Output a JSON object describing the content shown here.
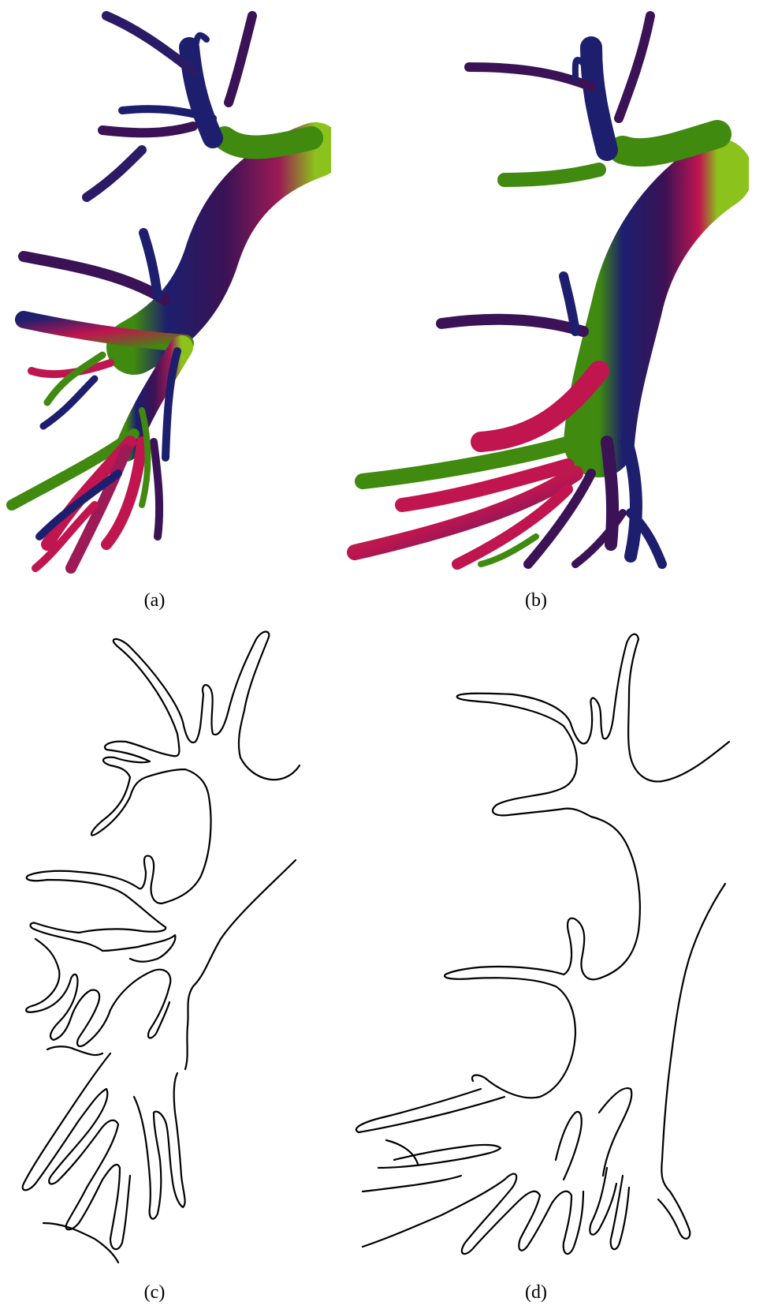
{
  "figure": {
    "panels": [
      {
        "id": "a",
        "label": "(a)"
      },
      {
        "id": "b",
        "label": "(b)"
      },
      {
        "id": "c",
        "label": "(c)"
      },
      {
        "id": "d",
        "label": "(d)"
      }
    ],
    "colors": {
      "purple": "#3a1255",
      "navy": "#1d1f6e",
      "magenta": "#c0154f",
      "green": "#3f8a0f",
      "lime": "#8bc21b",
      "outline": "#000000",
      "background": "#ffffff"
    }
  }
}
